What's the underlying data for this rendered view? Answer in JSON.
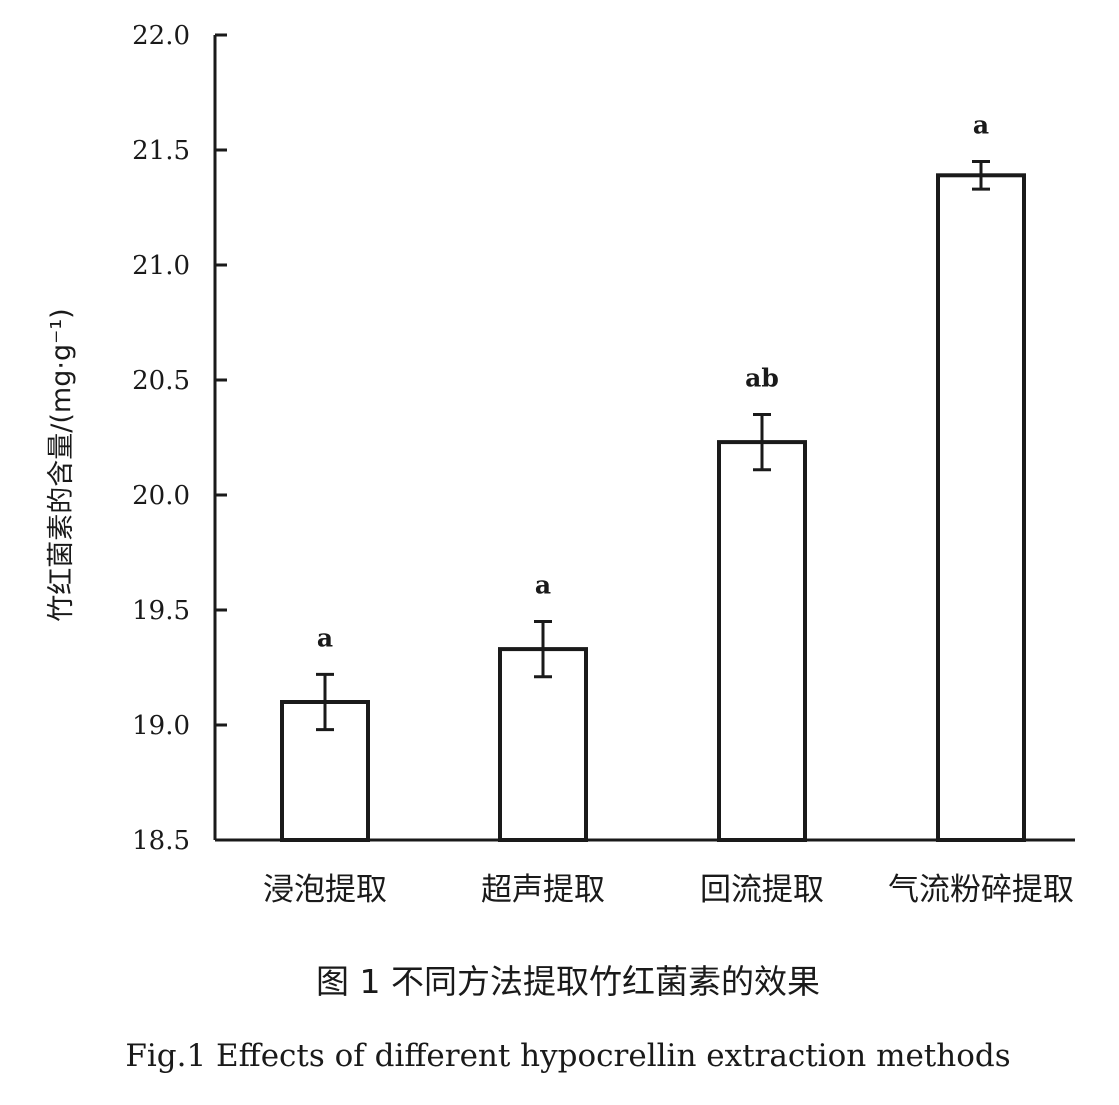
{
  "chart_data": {
    "type": "bar",
    "categories": [
      "浸泡提取",
      "超声提取",
      "回流提取",
      "气流粉碎提取"
    ],
    "values": [
      19.1,
      19.33,
      20.23,
      21.39
    ],
    "errors": [
      0.12,
      0.12,
      0.12,
      0.06
    ],
    "significance": [
      "a",
      "a",
      "ab",
      "a"
    ],
    "ylabel": "竹红菌素的含量/(mg·g⁻¹)",
    "ylim": [
      18.5,
      22.0
    ],
    "yticks": [
      18.5,
      19.0,
      19.5,
      20.0,
      20.5,
      21.0,
      21.5,
      22.0
    ],
    "ytick_labels": [
      "18.5",
      "19.0",
      "19.5",
      "20.0",
      "20.5",
      "21.0",
      "21.5",
      "22.0"
    ],
    "grid": false,
    "colors": {
      "bar_fill": "#ffffff",
      "bar_stroke": "#1a1a1a",
      "axis": "#1a1a1a"
    }
  },
  "caption": {
    "cn": "图 1 不同方法提取竹红菌素的效果",
    "en": "Fig.1 Effects of different hypocrellin extraction methods"
  }
}
